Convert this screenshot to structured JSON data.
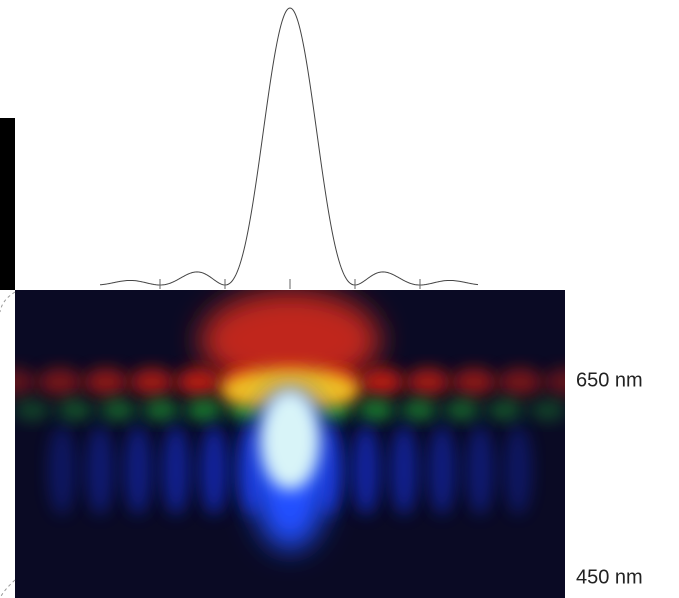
{
  "wavelength_labels": {
    "upper": "650 nm",
    "lower": "450 nm"
  }
}
